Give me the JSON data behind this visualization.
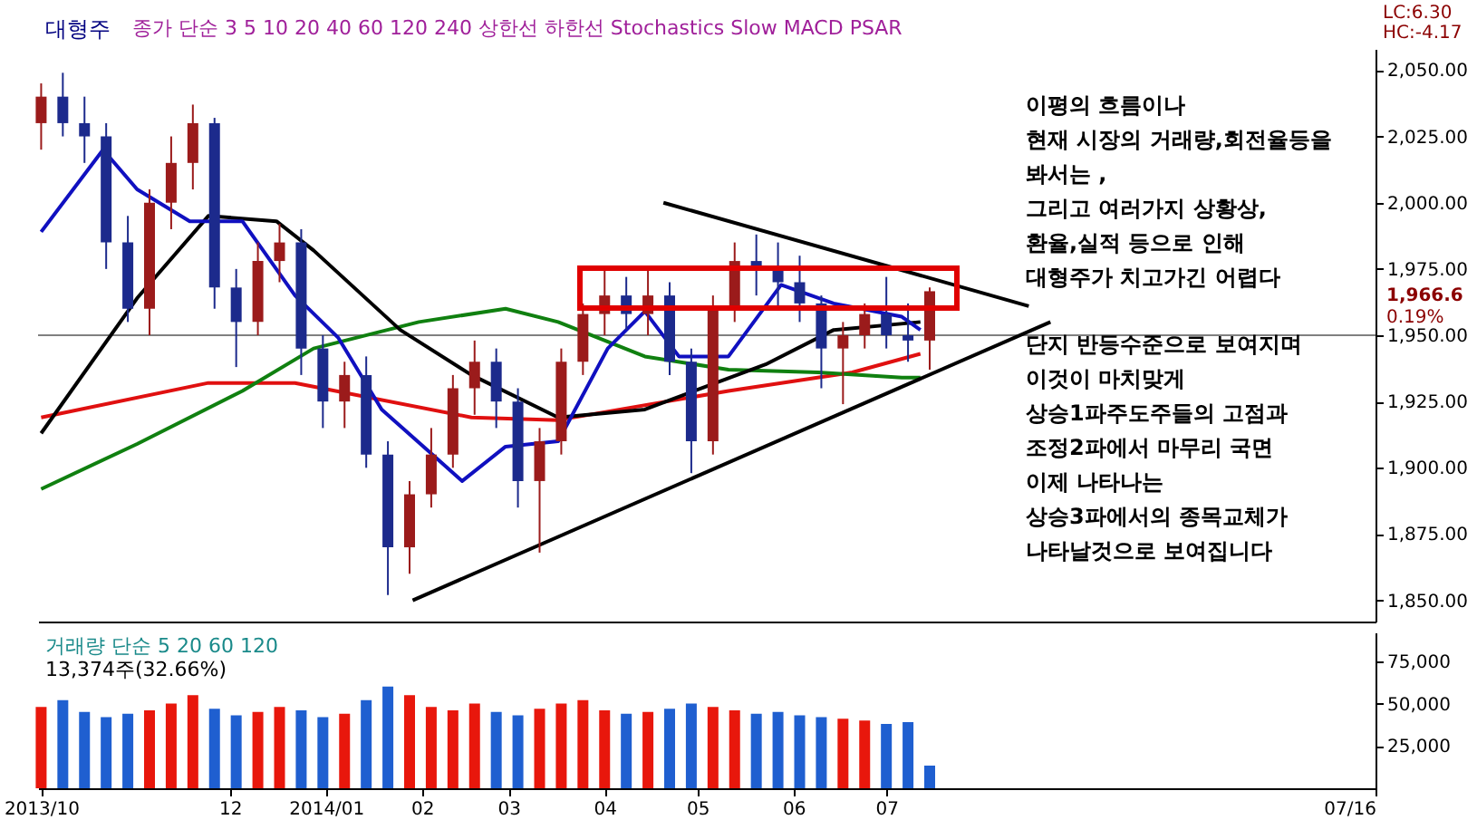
{
  "chart_data": [
    {
      "type": "candlestick",
      "title": "대형주",
      "subtitle": "종가 단순 3 5 10 20 40 60 120 240  상한선  하한선  Stochastics Slow  MACD  PSAR",
      "x": [
        "2013-10-01",
        "2013-10-08",
        "2013-10-15",
        "2013-10-22",
        "2013-10-29",
        "2013-11-05",
        "2013-11-12",
        "2013-11-19",
        "2013-11-26",
        "2013-12-03",
        "2013-12-10",
        "2013-12-17",
        "2013-12-24",
        "2013-12-31",
        "2014-01-07",
        "2014-01-14",
        "2014-01-21",
        "2014-01-28",
        "2014-02-04",
        "2014-02-11",
        "2014-02-18",
        "2014-02-25",
        "2014-03-04",
        "2014-03-11",
        "2014-03-18",
        "2014-03-25",
        "2014-04-01",
        "2014-04-08",
        "2014-04-15",
        "2014-04-22",
        "2014-04-29",
        "2014-05-06",
        "2014-05-13",
        "2014-05-20",
        "2014-05-27",
        "2014-06-03",
        "2014-06-10",
        "2014-06-17",
        "2014-06-24",
        "2014-07-01",
        "2014-07-08",
        "2014-07-15"
      ],
      "ohlc": [
        [
          2030,
          2045,
          2020,
          2040
        ],
        [
          2040,
          2049,
          2025,
          2030
        ],
        [
          2030,
          2040,
          2015,
          2025
        ],
        [
          2025,
          2030,
          1975,
          1985
        ],
        [
          1985,
          1995,
          1955,
          1960
        ],
        [
          1960,
          2005,
          1950,
          2000
        ],
        [
          2000,
          2025,
          1990,
          2015
        ],
        [
          2015,
          2037,
          2005,
          2030
        ],
        [
          2030,
          2032,
          1960,
          1968
        ],
        [
          1968,
          1975,
          1938,
          1955
        ],
        [
          1955,
          1985,
          1950,
          1978
        ],
        [
          1978,
          1992,
          1970,
          1985
        ],
        [
          1985,
          1990,
          1935,
          1945
        ],
        [
          1945,
          1950,
          1915,
          1925
        ],
        [
          1925,
          1940,
          1915,
          1935
        ],
        [
          1935,
          1942,
          1900,
          1905
        ],
        [
          1905,
          1910,
          1852,
          1870
        ],
        [
          1870,
          1895,
          1860,
          1890
        ],
        [
          1890,
          1915,
          1885,
          1905
        ],
        [
          1905,
          1935,
          1900,
          1930
        ],
        [
          1930,
          1948,
          1920,
          1940
        ],
        [
          1940,
          1945,
          1915,
          1925
        ],
        [
          1925,
          1930,
          1885,
          1895
        ],
        [
          1895,
          1915,
          1868,
          1910
        ],
        [
          1910,
          1945,
          1905,
          1940
        ],
        [
          1940,
          1962,
          1935,
          1958
        ],
        [
          1958,
          1975,
          1950,
          1965
        ],
        [
          1965,
          1972,
          1952,
          1958
        ],
        [
          1958,
          1975,
          1950,
          1965
        ],
        [
          1965,
          1970,
          1935,
          1940
        ],
        [
          1940,
          1945,
          1898,
          1910
        ],
        [
          1910,
          1965,
          1905,
          1960
        ],
        [
          1960,
          1985,
          1955,
          1978
        ],
        [
          1978,
          1988,
          1965,
          1975
        ],
        [
          1975,
          1985,
          1960,
          1970
        ],
        [
          1970,
          1980,
          1955,
          1962
        ],
        [
          1962,
          1965,
          1930,
          1945
        ],
        [
          1945,
          1955,
          1924,
          1950
        ],
        [
          1950,
          1962,
          1945,
          1958
        ],
        [
          1958,
          1972,
          1945,
          1950
        ],
        [
          1950,
          1962,
          1940,
          1948
        ],
        [
          1948,
          1968,
          1937,
          1966.6
        ]
      ],
      "series": [
        {
          "type": "line",
          "color": "#e01010",
          "x": [
            "2013-10-01",
            "2013-11-24",
            "2013-12-22",
            "2014-02-17",
            "2014-03-17",
            "2014-05-11",
            "2014-06-20",
            "2014-07-12"
          ],
          "values": [
            1919,
            1932,
            1932,
            1919,
            1918,
            1929,
            1936,
            1943
          ]
        },
        {
          "type": "line",
          "color": "#108010",
          "x": [
            "2013-10-01",
            "2013-11-01",
            "2013-12-05",
            "2013-12-28",
            "2014-01-31",
            "2014-02-28",
            "2014-03-17",
            "2014-04-14",
            "2014-05-11",
            "2014-06-09",
            "2014-07-06",
            "2014-07-12"
          ],
          "values": [
            1892,
            1909,
            1929,
            1945,
            1955,
            1960,
            1955,
            1942,
            1937,
            1936,
            1934,
            1934
          ]
        },
        {
          "type": "line",
          "color": "#000000",
          "x": [
            "2013-10-01",
            "2013-11-01",
            "2013-11-24",
            "2013-12-16",
            "2013-12-28",
            "2014-01-25",
            "2014-02-17",
            "2014-03-17",
            "2014-04-14",
            "2014-04-30",
            "2014-05-23",
            "2014-06-14",
            "2014-07-12"
          ],
          "values": [
            1913,
            1964,
            1995,
            1993,
            1982,
            1952,
            1935,
            1919,
            1922,
            1929,
            1939,
            1952,
            1955
          ]
        },
        {
          "type": "line",
          "color": "#1010c0",
          "x": [
            "2013-10-01",
            "2013-10-21",
            "2013-11-01",
            "2013-11-18",
            "2013-12-05",
            "2013-12-22",
            "2014-01-05",
            "2014-01-19",
            "2014-02-14",
            "2014-02-28",
            "2014-03-17",
            "2014-04-02",
            "2014-04-14",
            "2014-04-25",
            "2014-05-11",
            "2014-05-28",
            "2014-06-14",
            "2014-07-06",
            "2014-07-12"
          ],
          "values": [
            1989,
            2020,
            2005,
            1993,
            1993,
            1965,
            1949,
            1922,
            1895,
            1908,
            1910,
            1945,
            1959,
            1942,
            1942,
            1969,
            1962,
            1957,
            1952
          ]
        },
        {
          "type": "line",
          "color": "#000000",
          "x": [
            "2014-01-29",
            "2014-08-23"
          ],
          "values": [
            1850,
            1955
          ]
        },
        {
          "type": "line",
          "color": "#000000",
          "x": [
            "2014-04-20",
            "2014-08-16"
          ],
          "values": [
            2000,
            1961
          ]
        }
      ],
      "xlim": [
        "2013-09-30",
        "2014-12-06"
      ],
      "ylim": [
        1842,
        2058
      ],
      "yticks": [
        {
          "value": 1850,
          "label": "1,850.00"
        },
        {
          "value": 1875,
          "label": "1,875.00"
        },
        {
          "value": 1900,
          "label": "1,900.00"
        },
        {
          "value": 1925,
          "label": "1,925.00"
        },
        {
          "value": 1950,
          "label": "1,950.00"
        },
        {
          "value": 1975,
          "label": "1,975.00"
        },
        {
          "value": 2000,
          "label": "2,000.00"
        },
        {
          "value": 2025,
          "label": "2,025.00"
        },
        {
          "value": 2050,
          "label": "2,050.00"
        }
      ],
      "tick_labels": "y",
      "ref_lines": [
        {
          "axis": "y",
          "value": 1950,
          "color": "#808080"
        }
      ],
      "annotations": [
        "LC:6.30",
        "HC:-4.17",
        "1,966.6",
        "0.19%",
        "이평의 흐름이나",
        "현재 시장의 거래량,회전율등을",
        "봐서는 ,",
        "그리고 여러가지 상황상,",
        "환율,실적 등으로 인해",
        "대형주가 치고가긴 어렵다",
        "단지 반등수준으로 보여지며",
        "이것이 마치맞게",
        "상승1파주도주들의 고점과",
        "조정2파에서 마무리 국면",
        "이제 나타나는",
        "상승3파에서의 종목교체가",
        "나타날것으로 보여집니다"
      ]
    },
    {
      "type": "bar",
      "title": "거래량 단순 5 20 60 120",
      "x": [
        "2013-10-01",
        "2013-10-08",
        "2013-10-15",
        "2013-10-22",
        "2013-10-29",
        "2013-11-05",
        "2013-11-12",
        "2013-11-19",
        "2013-11-26",
        "2013-12-03",
        "2013-12-10",
        "2013-12-17",
        "2013-12-24",
        "2013-12-31",
        "2014-01-07",
        "2014-01-14",
        "2014-01-21",
        "2014-01-28",
        "2014-02-04",
        "2014-02-11",
        "2014-02-18",
        "2014-02-25",
        "2014-03-04",
        "2014-03-11",
        "2014-03-18",
        "2014-03-25",
        "2014-04-01",
        "2014-04-08",
        "2014-04-15",
        "2014-04-22",
        "2014-04-29",
        "2014-05-06",
        "2014-05-13",
        "2014-05-20",
        "2014-05-27",
        "2014-06-03",
        "2014-06-10",
        "2014-06-17",
        "2014-06-24",
        "2014-07-01",
        "2014-07-08",
        "2014-07-15"
      ],
      "values": [
        48000,
        52000,
        45000,
        42000,
        44000,
        46000,
        50000,
        55000,
        47000,
        43000,
        45000,
        48000,
        46000,
        42000,
        44000,
        52000,
        60000,
        55000,
        48000,
        46000,
        50000,
        45000,
        43000,
        47000,
        50000,
        52000,
        46000,
        44000,
        45000,
        47000,
        50000,
        48000,
        46000,
        44000,
        45000,
        43000,
        42000,
        41000,
        40000,
        38000,
        39000,
        13374
      ],
      "colors": [
        "#e8170c",
        "#1f5fd0",
        "#1f5fd0",
        "#1f5fd0",
        "#1f5fd0",
        "#e8170c",
        "#e8170c",
        "#e8170c",
        "#1f5fd0",
        "#1f5fd0",
        "#e8170c",
        "#e8170c",
        "#1f5fd0",
        "#1f5fd0",
        "#e8170c",
        "#1f5fd0",
        "#1f5fd0",
        "#e8170c",
        "#e8170c",
        "#e8170c",
        "#e8170c",
        "#1f5fd0",
        "#1f5fd0",
        "#e8170c",
        "#e8170c",
        "#e8170c",
        "#e8170c",
        "#1f5fd0",
        "#e8170c",
        "#1f5fd0",
        "#1f5fd0",
        "#e8170c",
        "#e8170c",
        "#1f5fd0",
        "#1f5fd0",
        "#1f5fd0",
        "#1f5fd0",
        "#e8170c",
        "#e8170c",
        "#1f5fd0",
        "#1f5fd0",
        "#1f5fd0"
      ],
      "xlim": [
        "2013-09-30",
        "2014-12-06"
      ],
      "xticks": [
        {
          "value": "2013-10-01",
          "label": "2013/10"
        },
        {
          "value": "2013-12-01",
          "label": "12"
        },
        {
          "value": "2014-01-01",
          "label": "2014/01"
        },
        {
          "value": "2014-02-01",
          "label": "02"
        },
        {
          "value": "2014-03-01",
          "label": "03"
        },
        {
          "value": "2014-04-01",
          "label": "04"
        },
        {
          "value": "2014-05-01",
          "label": "05"
        },
        {
          "value": "2014-06-01",
          "label": "06"
        },
        {
          "value": "2014-07-01",
          "label": "07"
        },
        {
          "value": "2014-12-06",
          "label": "07/16"
        }
      ],
      "ylim": [
        0,
        92000
      ],
      "yticks": [
        {
          "value": 25000,
          "label": "25,000"
        },
        {
          "value": 50000,
          "label": "50,000"
        },
        {
          "value": 75000,
          "label": "75,000"
        }
      ],
      "annotations": [
        "13,374주(32.66%)"
      ]
    }
  ]
}
